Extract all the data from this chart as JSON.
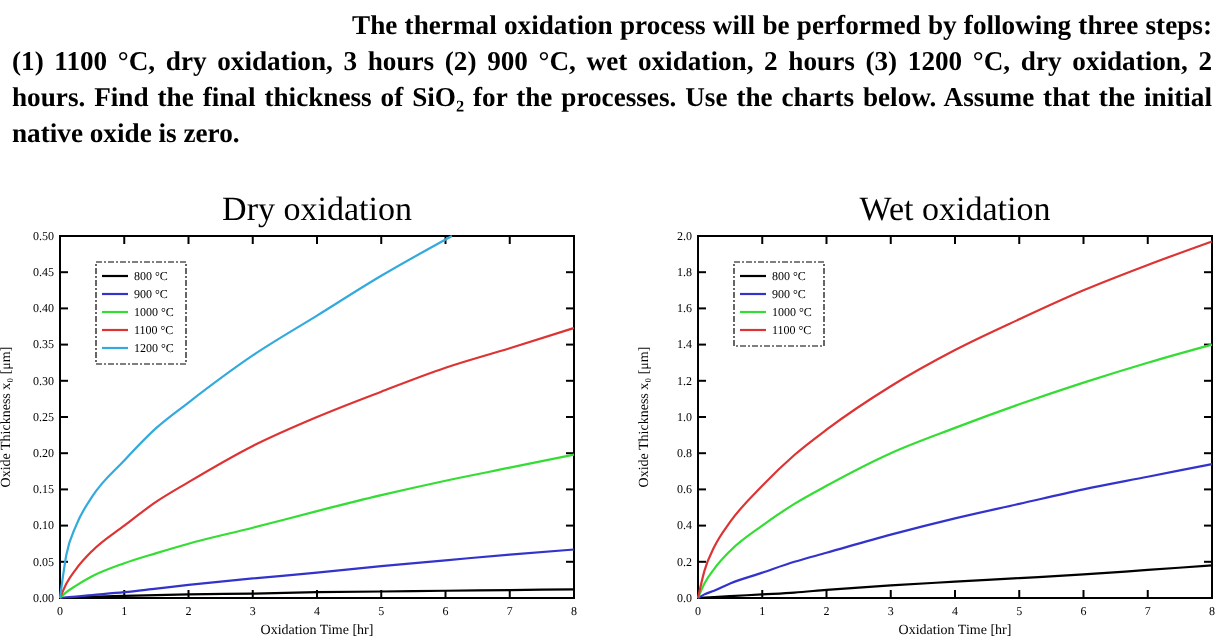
{
  "chart_data": [
    {
      "type": "line",
      "title": "Dry oxidation",
      "xlabel": "Oxidation Time [hr]",
      "ylabel": "Oxide Thickness x₀ [μm]",
      "annotations": [
        "The thermal oxidation process will be performed by following three steps:   (1) 1100 °C, dry oxidation, 3 hours (2) 900 °C, wet oxidation, 2 hours (3) 1200 °C, dry oxidation, 2 hours. Find the final thickness of SiO₂ for the processes. Use the charts below. Assume that the initial native oxide is zero."
      ],
      "x": [
        0,
        0.1,
        0.25,
        0.5,
        1,
        1.5,
        2,
        3,
        4,
        5,
        6,
        7,
        8
      ],
      "xlim": [
        0,
        8
      ],
      "xticks": [
        0,
        1,
        2,
        3,
        4,
        5,
        6,
        7,
        8
      ],
      "ylim": [
        0,
        0.5
      ],
      "yticks": [
        {
          "value": 0,
          "label": "0.00"
        },
        {
          "value": 0.05,
          "label": "0.05"
        },
        {
          "value": 0.1,
          "label": "0.10"
        },
        {
          "value": 0.15,
          "label": "0.15"
        },
        {
          "value": 0.2,
          "label": "0.20"
        },
        {
          "value": 0.25,
          "label": "0.25"
        },
        {
          "value": 0.3,
          "label": "0.30"
        },
        {
          "value": 0.35,
          "label": "0.35"
        },
        {
          "value": 0.4,
          "label": "0.40"
        },
        {
          "value": 0.45,
          "label": "0.45"
        },
        {
          "value": 0.5,
          "label": "0.50"
        }
      ],
      "legend": "top left",
      "grid": false,
      "series": [
        {
          "name": "800 °C",
          "color": "#000000",
          "values": [
            0,
            0,
            0.001,
            0.002,
            0.003,
            0.004,
            0.005,
            0.006,
            0.008,
            0.009,
            0.01,
            0.011,
            0.012
          ]
        },
        {
          "name": "900 °C",
          "color": "#3333cc",
          "values": [
            0,
            0.001,
            0.002,
            0.004,
            0.008,
            0.013,
            0.018,
            0.027,
            0.035,
            0.044,
            0.052,
            0.06,
            0.067
          ]
        },
        {
          "name": "1000 °C",
          "color": "#33dd33",
          "values": [
            0,
            0.008,
            0.017,
            0.03,
            0.048,
            0.062,
            0.075,
            0.097,
            0.12,
            0.142,
            0.162,
            0.18,
            0.198
          ]
        },
        {
          "name": "1100 °C",
          "color": "#dd3333",
          "values": [
            0,
            0.02,
            0.04,
            0.065,
            0.1,
            0.133,
            0.16,
            0.21,
            0.25,
            0.285,
            0.318,
            0.345,
            0.373
          ]
        },
        {
          "name": "1200 °C",
          "color": "#33aadd",
          "x": [
            0,
            0.1,
            0.25,
            0.5,
            1,
            1.5,
            2,
            3,
            4,
            5,
            6.1
          ],
          "values": [
            0,
            0.06,
            0.1,
            0.14,
            0.19,
            0.235,
            0.27,
            0.335,
            0.39,
            0.445,
            0.5
          ]
        }
      ]
    },
    {
      "type": "line",
      "title": "Wet oxidation",
      "xlabel": "Oxidation Time [hr]",
      "ylabel": "Oxide Thickness x₀ [μm]",
      "x": [
        0,
        0.1,
        0.25,
        0.5,
        1,
        1.5,
        2,
        3,
        4,
        5,
        6,
        7,
        8
      ],
      "xlim": [
        0,
        8
      ],
      "xticks": [
        0,
        1,
        2,
        3,
        4,
        5,
        6,
        7,
        8
      ],
      "ylim": [
        0,
        2
      ],
      "yticks": [
        {
          "value": 0,
          "label": "0.0"
        },
        {
          "value": 0.2,
          "label": "0.2"
        },
        {
          "value": 0.4,
          "label": "0.4"
        },
        {
          "value": 0.6,
          "label": "0.6"
        },
        {
          "value": 0.8,
          "label": "0.8"
        },
        {
          "value": 1,
          "label": "1.0"
        },
        {
          "value": 1.2,
          "label": "1.2"
        },
        {
          "value": 1.4,
          "label": "1.4"
        },
        {
          "value": 1.6,
          "label": "1.6"
        },
        {
          "value": 1.8,
          "label": "1.8"
        },
        {
          "value": 2,
          "label": "2.0"
        }
      ],
      "legend": "top left",
      "grid": false,
      "series": [
        {
          "name": "800 °C",
          "color": "#000000",
          "values": [
            0,
            0.002,
            0.005,
            0.01,
            0.02,
            0.03,
            0.045,
            0.07,
            0.09,
            0.11,
            0.13,
            0.155,
            0.18
          ]
        },
        {
          "name": "900 °C",
          "color": "#3333cc",
          "values": [
            0,
            0.02,
            0.04,
            0.08,
            0.14,
            0.2,
            0.25,
            0.35,
            0.44,
            0.52,
            0.6,
            0.67,
            0.74
          ]
        },
        {
          "name": "1000 °C",
          "color": "#33dd33",
          "values": [
            0,
            0.08,
            0.16,
            0.26,
            0.4,
            0.52,
            0.62,
            0.8,
            0.94,
            1.07,
            1.19,
            1.3,
            1.4
          ]
        },
        {
          "name": "1100 °C",
          "color": "#dd3333",
          "values": [
            0,
            0.15,
            0.28,
            0.42,
            0.62,
            0.79,
            0.93,
            1.17,
            1.37,
            1.54,
            1.7,
            1.84,
            1.97
          ]
        }
      ]
    }
  ]
}
